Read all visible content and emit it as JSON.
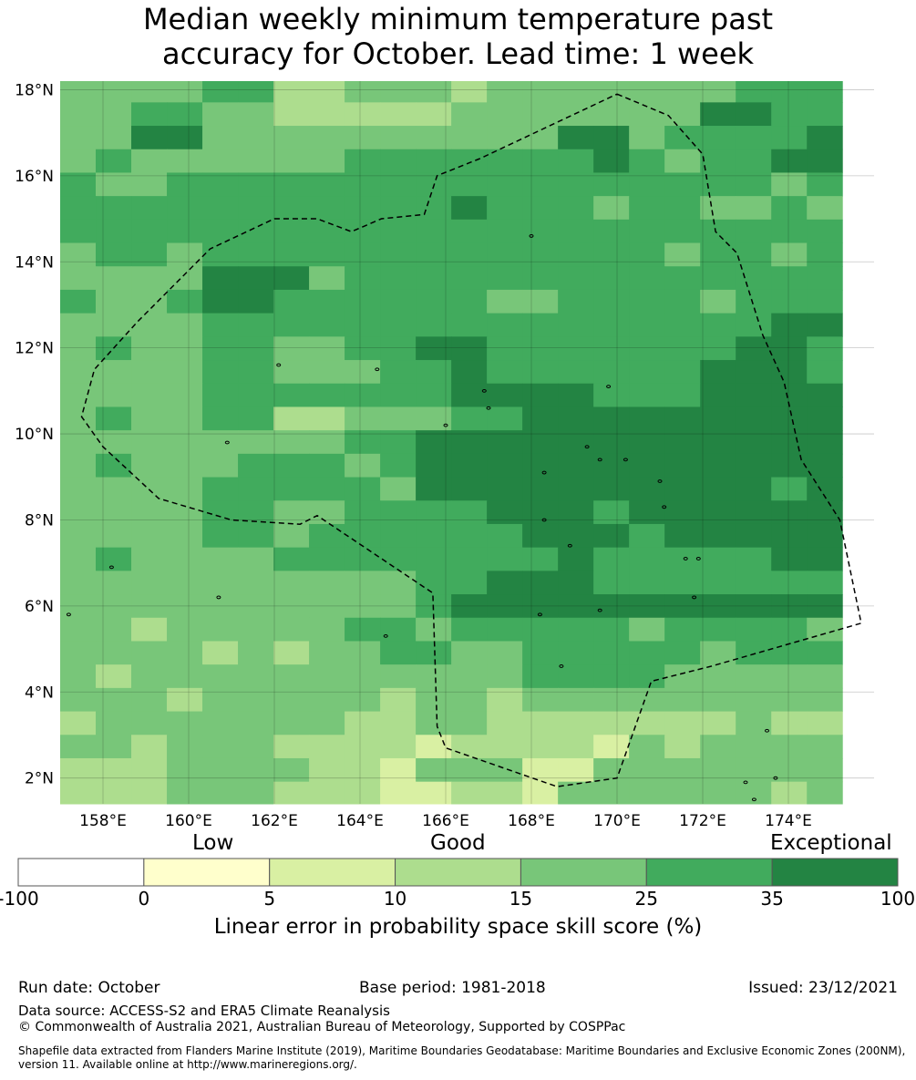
{
  "title": {
    "line1": "Median weekly minimum temperature past",
    "line2": "accuracy for October. Lead time: 1 week"
  },
  "map": {
    "lat_labels": [
      "18°N",
      "16°N",
      "14°N",
      "12°N",
      "10°N",
      "8°N",
      "6°N",
      "4°N",
      "2°N"
    ],
    "lon_labels": [
      "158°E",
      "160°E",
      "162°E",
      "164°E",
      "166°E",
      "168°E",
      "170°E",
      "172°E",
      "174°E"
    ],
    "lat_values": [
      18,
      16,
      14,
      12,
      10,
      8,
      6,
      4,
      2
    ],
    "lon_values": [
      158,
      160,
      162,
      164,
      166,
      168,
      170,
      172,
      174
    ],
    "extent": {
      "lon_min": 157.0,
      "lon_max": 176.0,
      "lat_min": 1.4,
      "lat_max": 18.2
    },
    "grid_origin": {
      "lon": 157.0,
      "lat": 18.25,
      "cell_deg": 0.83
    },
    "grid_rows": [
      "3333442233323333333444",
      "3344332222233333335544",
      "3355333333333355344445",
      "3433333344444445434455",
      "4334444444444444444434",
      "4444444444454443443343",
      "4444444444444444444444",
      "3443444444444444434434",
      "3333555344444444444444",
      "4334554444443344443444",
      "3333444444444444444455",
      "3433443344554444444554",
      "3333443334454444445554",
      "3333444444455554445555",
      "3433442233344555555555",
      "3333333344555555555555",
      "3433344434555555555555",
      "3333444443555555555545",
      "3333443344445554555555",
      "3333443444444555455555",
      "3433334444444454444455",
      "3333333333445554444444",
      "3333333333455555555555",
      "3323333344344444344443",
      "3333232334433444443444",
      "3233333333333444433333",
      "3332333332332333333333",
      "2333333322332222222322",
      "3323332222122221323333",
      "2223333221333113333333",
      "2223332221122133333323",
      "3223112222222222323332"
    ],
    "colors": [
      "#ffffcc",
      "#d9f0a3",
      "#addd8e",
      "#78c679",
      "#41ab5d",
      "#238443"
    ],
    "eez_boundary": [
      [
        170.0,
        17.9
      ],
      [
        171.2,
        17.4
      ],
      [
        172.0,
        16.5
      ],
      [
        172.3,
        14.7
      ],
      [
        172.8,
        14.2
      ],
      [
        173.4,
        12.3
      ],
      [
        173.9,
        11.2
      ],
      [
        174.3,
        9.4
      ],
      [
        175.2,
        8.0
      ],
      [
        175.7,
        5.6
      ],
      [
        172.2,
        4.6
      ],
      [
        170.8,
        4.25
      ],
      [
        170.0,
        2.0
      ],
      [
        168.6,
        1.8
      ],
      [
        166.0,
        2.7
      ],
      [
        165.8,
        3.2
      ],
      [
        165.7,
        6.3
      ],
      [
        163.0,
        8.1
      ],
      [
        162.6,
        7.9
      ],
      [
        161.0,
        8.0
      ],
      [
        159.3,
        8.5
      ],
      [
        158.0,
        9.7
      ],
      [
        157.5,
        10.4
      ],
      [
        157.8,
        11.5
      ],
      [
        158.8,
        12.6
      ],
      [
        160.5,
        14.3
      ],
      [
        162.0,
        15.0
      ],
      [
        163.0,
        15.0
      ],
      [
        163.8,
        14.7
      ],
      [
        164.5,
        15.0
      ],
      [
        165.5,
        15.1
      ],
      [
        165.8,
        16.0
      ],
      [
        166.8,
        16.4
      ],
      [
        170.0,
        17.9
      ]
    ],
    "islands": [
      [
        158.2,
        6.9
      ],
      [
        160.7,
        6.2
      ],
      [
        157.2,
        5.8
      ],
      [
        164.6,
        5.3
      ],
      [
        168.7,
        4.6
      ],
      [
        166.0,
        10.2
      ],
      [
        167.0,
        10.6
      ],
      [
        168.3,
        9.1
      ],
      [
        169.3,
        9.7
      ],
      [
        169.6,
        9.4
      ],
      [
        171.0,
        8.9
      ],
      [
        171.1,
        8.3
      ],
      [
        170.2,
        9.4
      ],
      [
        168.3,
        8.0
      ],
      [
        168.9,
        7.4
      ],
      [
        171.6,
        7.1
      ],
      [
        171.9,
        7.1
      ],
      [
        171.8,
        6.2
      ],
      [
        169.6,
        5.9
      ],
      [
        168.2,
        5.8
      ],
      [
        173.5,
        3.1
      ],
      [
        173.0,
        1.9
      ],
      [
        173.2,
        1.5
      ],
      [
        164.4,
        11.5
      ],
      [
        162.1,
        11.6
      ],
      [
        160.9,
        9.8
      ],
      [
        168.0,
        14.6
      ],
      [
        169.8,
        11.1
      ],
      [
        166.9,
        11.0
      ],
      [
        173.7,
        2.0
      ]
    ]
  },
  "colorbar": {
    "band_labels": {
      "low": "Low",
      "good": "Good",
      "exceptional": "Exceptional"
    },
    "ticks": [
      "-100",
      "0",
      "5",
      "10",
      "15",
      "25",
      "35",
      "100"
    ],
    "segment_colors": [
      "#ffffff",
      "#ffffcc",
      "#d9f0a3",
      "#addd8e",
      "#78c679",
      "#41ab5d",
      "#238443"
    ],
    "caption": "Linear error in probability space skill score (%)"
  },
  "footer": {
    "run_date": "Run date: October",
    "base_period": "Base period: 1981-2018",
    "issued": "Issued: 23/12/2021",
    "data_source": "Data source: ACCESS-S2 and ERA5 Climate Reanalysis",
    "copyright": "© Commonwealth of Australia 2021, Australian Bureau of Meteorology, Supported by COSPPac",
    "shapefile": "Shapefile data extracted from Flanders Marine Institute (2019), Maritime Boundaries Geodatabase: Maritime Boundaries and Exclusive Economic Zones (200NM), version 11. Available online at http://www.marineregions.org/."
  }
}
